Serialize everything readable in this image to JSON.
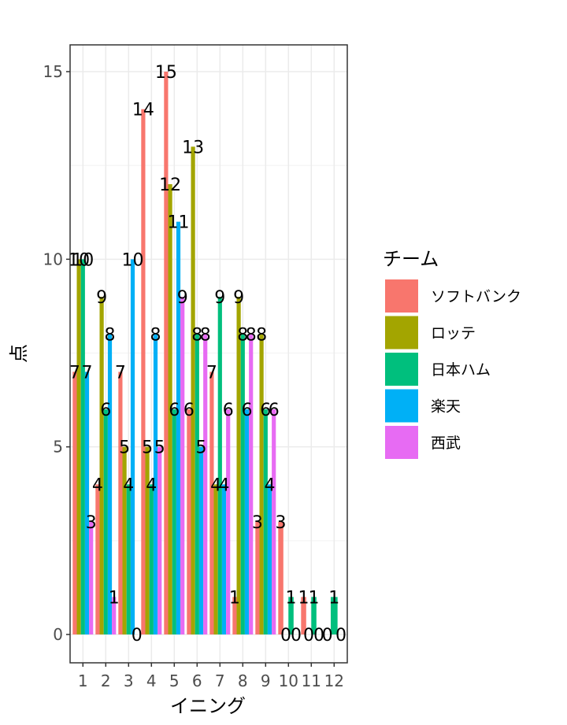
{
  "chart_data": {
    "type": "bar",
    "xlabel": "イニング",
    "ylabel": "点",
    "ylim": [
      0,
      15
    ],
    "yticks": [
      0,
      5,
      10,
      15
    ],
    "categories": [
      "1",
      "2",
      "3",
      "4",
      "5",
      "6",
      "7",
      "8",
      "9",
      "10",
      "11",
      "12"
    ],
    "legend": {
      "title": "チーム",
      "placement": "right"
    },
    "grid": true,
    "series": [
      {
        "name": "ソフトバンク",
        "color": "#F8766D",
        "values": [
          7,
          4,
          7,
          14,
          15,
          6,
          7,
          1,
          3,
          3,
          1,
          null
        ]
      },
      {
        "name": "ロッテ",
        "color": "#A3A500",
        "values": [
          10,
          9,
          5,
          5,
          12,
          13,
          4,
          9,
          8,
          0,
          0,
          0
        ]
      },
      {
        "name": "日本ハム",
        "color": "#00BF7D",
        "values": [
          10,
          6,
          4,
          4,
          6,
          8,
          9,
          8,
          6,
          1,
          1,
          1
        ]
      },
      {
        "name": "楽天",
        "color": "#00B0F6",
        "values": [
          7,
          8,
          10,
          8,
          11,
          5,
          4,
          6,
          4,
          0,
          0,
          0
        ]
      },
      {
        "name": "西武",
        "color": "#E76BF3",
        "values": [
          3,
          1,
          0,
          5,
          9,
          8,
          6,
          8,
          6,
          null,
          null,
          null
        ]
      }
    ]
  }
}
